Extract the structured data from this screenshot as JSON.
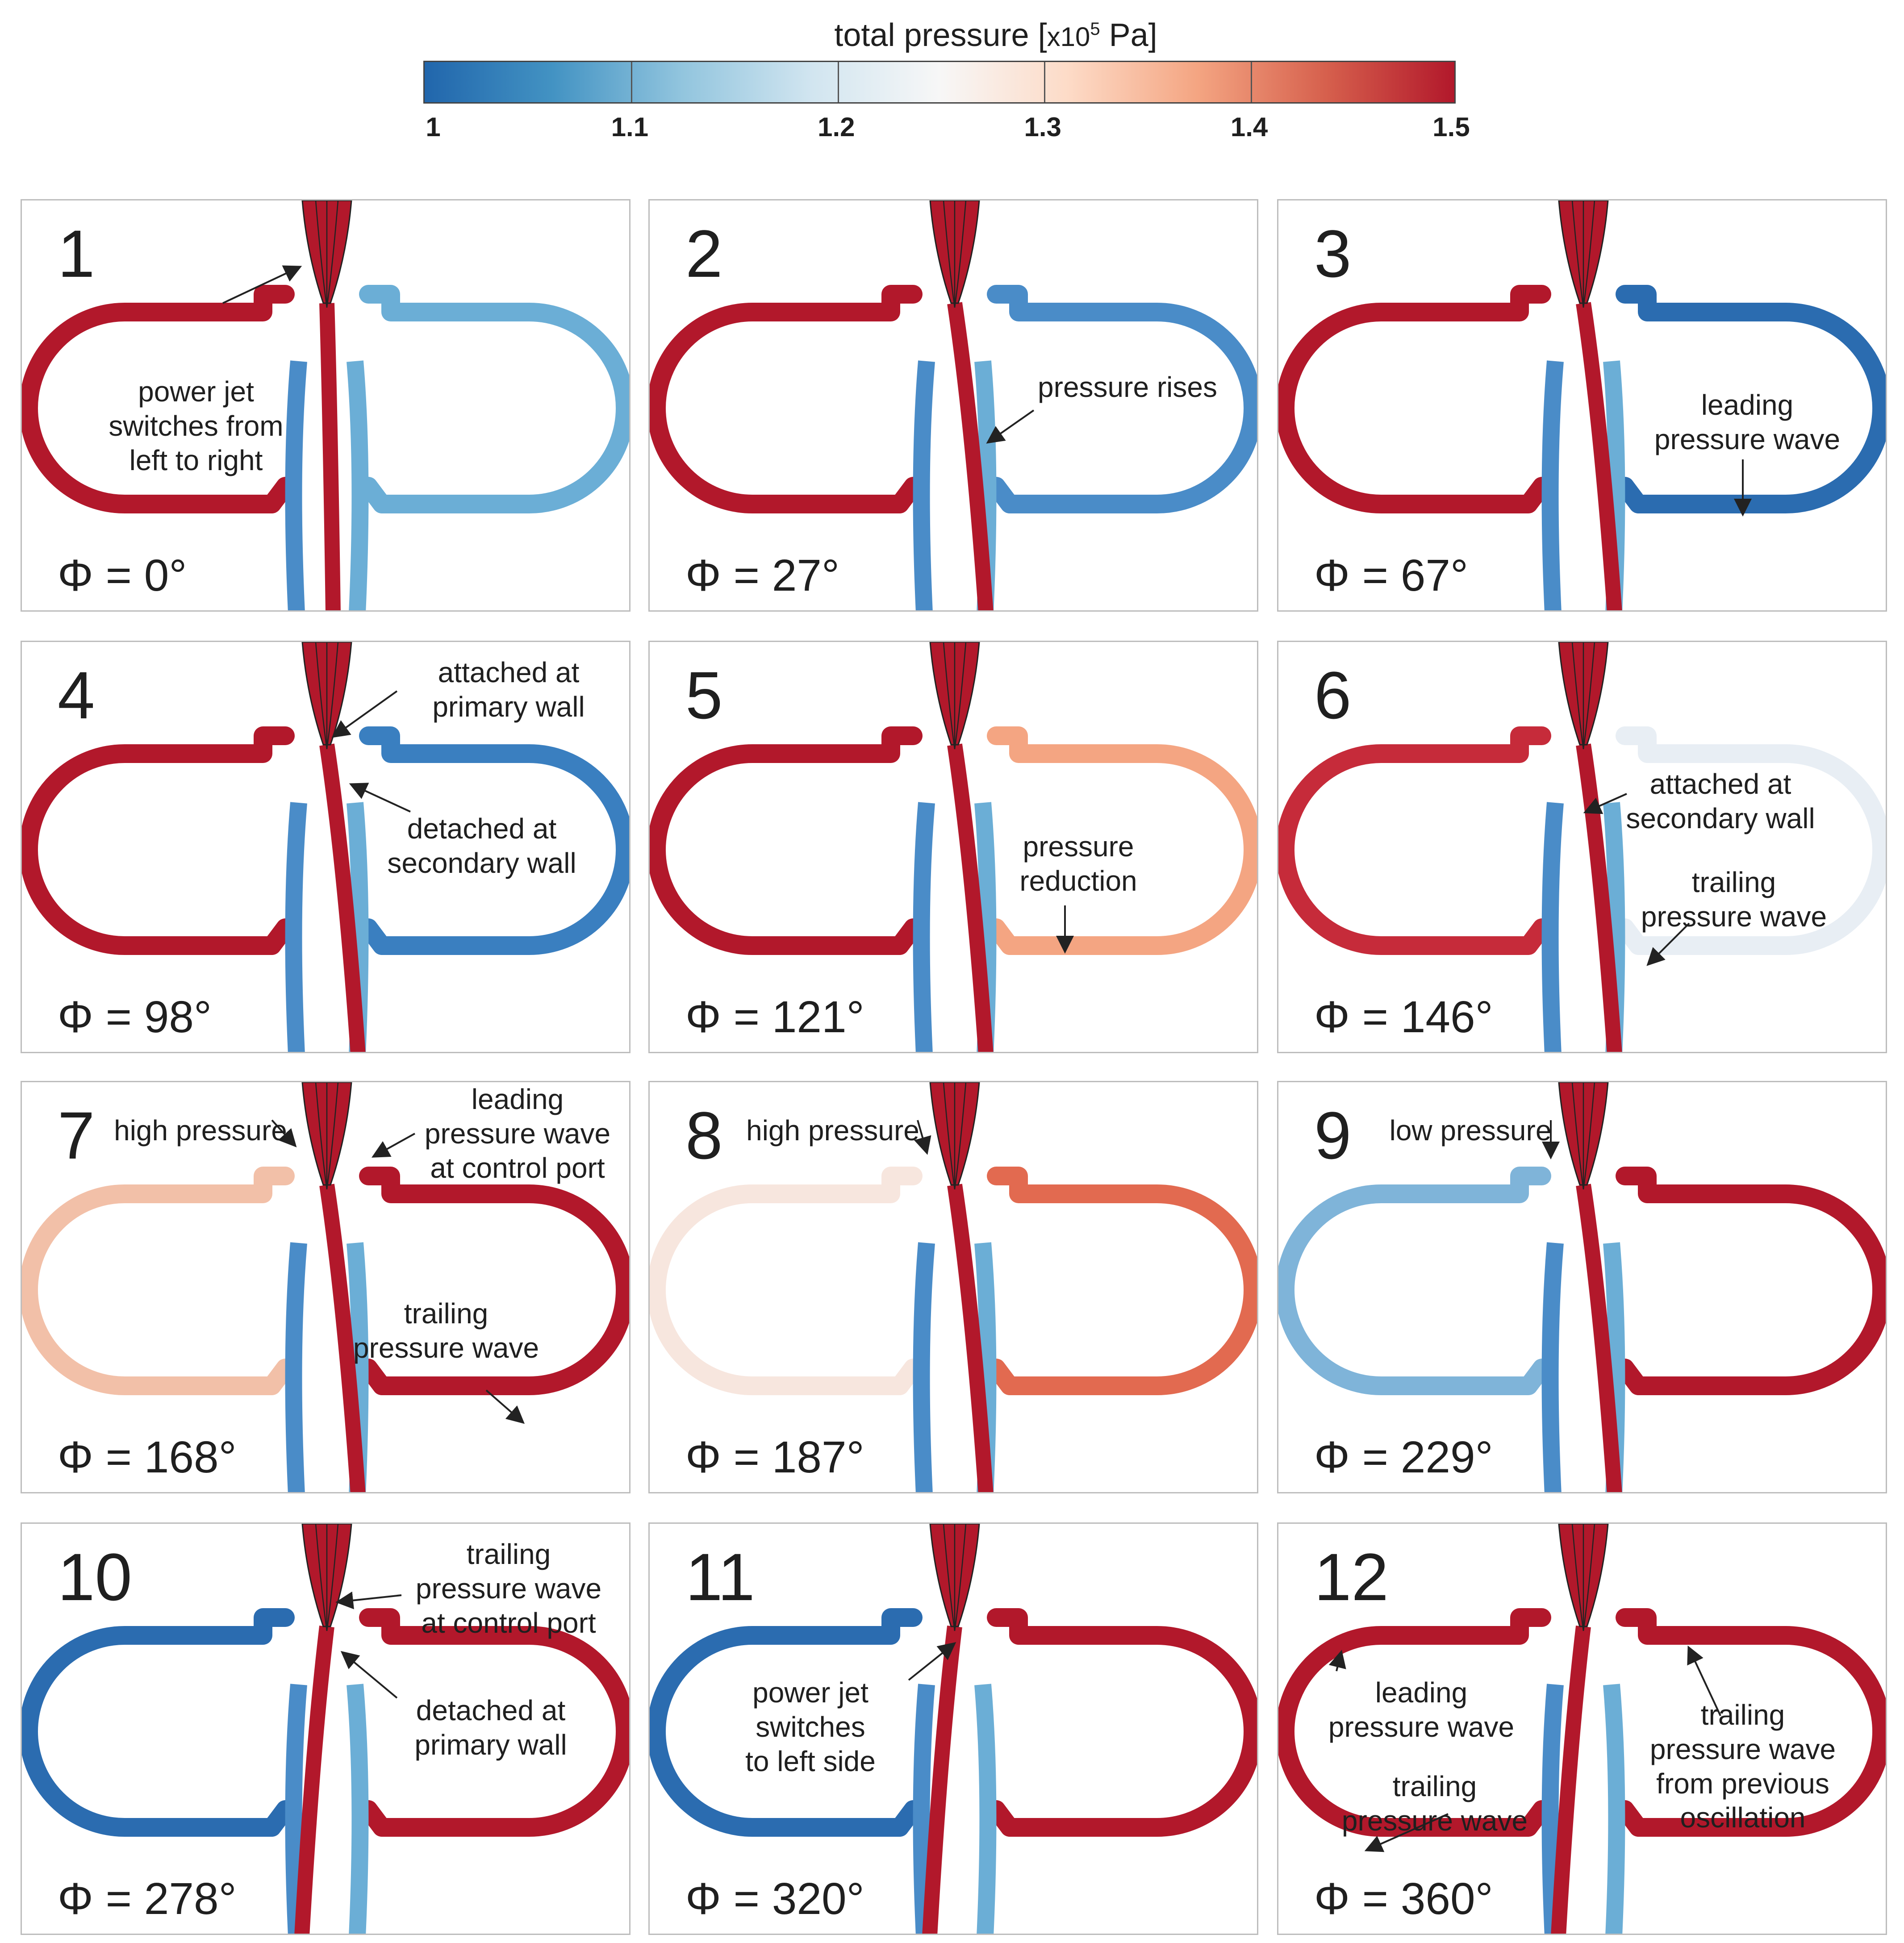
{
  "colorbar": {
    "title": "total pressure [",
    "title_mult": "x10",
    "title_exp": "5",
    "title_unit": " Pa]",
    "ticks": [
      "1",
      "1.1",
      "1.2",
      "1.3",
      "1.4",
      "1.5"
    ],
    "colors": [
      "#2166ac",
      "#4393c3",
      "#92c5de",
      "#d1e5f0",
      "#f7f7f7",
      "#fddbc7",
      "#f4a582",
      "#d6604d",
      "#b2182b"
    ]
  },
  "panels": [
    {
      "num": "1",
      "phase": "Φ = 0°",
      "left": "#b2182b",
      "right": "#6baed6",
      "annotations": [
        "power jet\nswitches from\nleft to right"
      ]
    },
    {
      "num": "2",
      "phase": "Φ = 27°",
      "left": "#b2182b",
      "right": "#4a8cc8",
      "annotations": [
        "pressure rises"
      ]
    },
    {
      "num": "3",
      "phase": "Φ = 67°",
      "left": "#b2182b",
      "right": "#2b6cb0",
      "annotations": [
        "leading\npressure wave"
      ]
    },
    {
      "num": "4",
      "phase": "Φ = 98°",
      "left": "#b2182b",
      "right": "#3a7fc0",
      "annotations": [
        "attached at\nprimary wall",
        "detached at\nsecondary wall"
      ]
    },
    {
      "num": "5",
      "phase": "Φ = 121°",
      "left": "#b2182b",
      "right": "#f4a582",
      "annotations": [
        "pressure\nreduction"
      ]
    },
    {
      "num": "6",
      "phase": "Φ = 146°",
      "left": "#c62b3a",
      "right": "#e8eef4",
      "annotations": [
        "attached at\nsecondary wall",
        "trailing\npressure wave"
      ]
    },
    {
      "num": "7",
      "phase": "Φ = 168°",
      "left": "#f2c0a8",
      "right": "#b2182b",
      "annotations": [
        "high pressure",
        "leading\npressure wave\nat control port",
        "trailing\npressure wave"
      ]
    },
    {
      "num": "8",
      "phase": "Φ = 187°",
      "left": "#f7e6de",
      "right": "#e26a50",
      "annotations": [
        "high pressure"
      ]
    },
    {
      "num": "9",
      "phase": "Φ = 229°",
      "left": "#7fb4d9",
      "right": "#b2182b",
      "annotations": [
        "low pressure"
      ]
    },
    {
      "num": "10",
      "phase": "Φ = 278°",
      "left": "#2b6cb0",
      "right": "#b2182b",
      "annotations": [
        "trailing\npressure wave\nat control port",
        "detached at\nprimary wall"
      ]
    },
    {
      "num": "11",
      "phase": "Φ = 320°",
      "left": "#2b6cb0",
      "right": "#b2182b",
      "annotations": [
        "power jet\nswitches\nto left side"
      ]
    },
    {
      "num": "12",
      "phase": "Φ = 360°",
      "left": "#b2182b",
      "right": "#b2182b",
      "annotations": [
        "leading\npressure wave",
        "trailing\npressure wave",
        "trailing\npressure wave\nfrom previous\noscillation"
      ]
    }
  ]
}
